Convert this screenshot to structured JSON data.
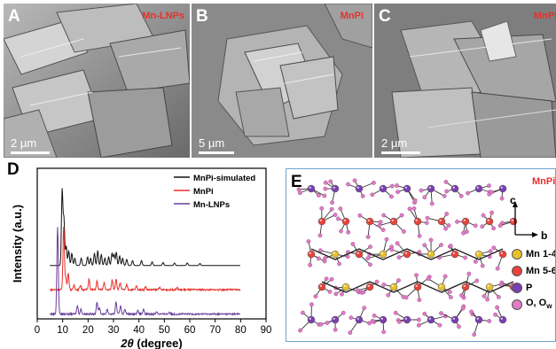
{
  "panels": {
    "A": {
      "letter": "A",
      "tag": "Mn-LNPs",
      "scale": "2 µm"
    },
    "B": {
      "letter": "B",
      "tag": "MnPi",
      "scale": "5 µm"
    },
    "C": {
      "letter": "C",
      "tag": "MnPi",
      "scale": "2 µm"
    },
    "D": {
      "letter": "D"
    },
    "E": {
      "letter": "E",
      "tag": "MnPi",
      "axis_c": "c",
      "axis_b": "b"
    }
  },
  "structure_legend": [
    {
      "label": "Mn 1-4",
      "color": "#e6c12b"
    },
    {
      "label": "Mn 5-6",
      "color": "#e8423a"
    },
    {
      "label": "P",
      "color": "#7a3fb0"
    },
    {
      "label": "O, O",
      "subscript": "w",
      "color": "#e07ac6"
    }
  ],
  "chart_data": {
    "type": "line",
    "xlabel_main": "2θ",
    "xlabel_unit": " (degree)",
    "ylabel": "Intensity (a.u.)",
    "xlim": [
      0,
      90
    ],
    "xticks": [
      0,
      10,
      20,
      30,
      40,
      50,
      60,
      70,
      80,
      90
    ],
    "series": [
      {
        "name": "MnPi-simulated",
        "color": "#111111",
        "offset": 2.0,
        "peaks": [
          [
            9.8,
            3.1
          ],
          [
            10.5,
            1.9
          ],
          [
            11.4,
            0.8
          ],
          [
            12.4,
            0.6
          ],
          [
            13.6,
            0.5
          ],
          [
            14.8,
            0.3
          ],
          [
            17.3,
            0.3
          ],
          [
            19.8,
            0.35
          ],
          [
            21.0,
            0.3
          ],
          [
            22.5,
            0.5
          ],
          [
            23.8,
            0.6
          ],
          [
            25.2,
            0.45
          ],
          [
            26.6,
            0.3
          ],
          [
            28.1,
            0.35
          ],
          [
            29.4,
            0.5
          ],
          [
            30.2,
            0.45
          ],
          [
            31.1,
            0.55
          ],
          [
            32.4,
            0.4
          ],
          [
            33.6,
            0.3
          ],
          [
            35.2,
            0.25
          ],
          [
            37.5,
            0.2
          ],
          [
            41.0,
            0.2
          ],
          [
            45.2,
            0.15
          ],
          [
            49.5,
            0.12
          ],
          [
            54.0,
            0.1
          ],
          [
            59.0,
            0.1
          ],
          [
            64.0,
            0.08
          ]
        ]
      },
      {
        "name": "MnPi",
        "color": "#e8302a",
        "offset": 1.0,
        "peaks": [
          [
            10.4,
            2.6
          ],
          [
            11.2,
            0.5
          ],
          [
            12.2,
            0.7
          ],
          [
            14.5,
            0.2
          ],
          [
            17.0,
            0.2
          ],
          [
            20.4,
            0.45
          ],
          [
            23.5,
            0.35
          ],
          [
            26.3,
            0.3
          ],
          [
            29.5,
            0.4
          ],
          [
            31.0,
            0.45
          ],
          [
            32.6,
            0.3
          ],
          [
            35.2,
            0.2
          ],
          [
            39.0,
            0.15
          ],
          [
            42.6,
            0.12
          ],
          [
            48.0,
            0.1
          ],
          [
            55.0,
            0.08
          ]
        ]
      },
      {
        "name": "Mn-LNPs",
        "color": "#6a3e99",
        "offset": 0.0,
        "peaks": [
          [
            8.0,
            3.6
          ],
          [
            15.8,
            0.35
          ],
          [
            17.2,
            0.2
          ],
          [
            23.5,
            0.5
          ],
          [
            24.5,
            0.25
          ],
          [
            27.5,
            0.2
          ],
          [
            31.0,
            0.5
          ],
          [
            32.8,
            0.35
          ],
          [
            34.5,
            0.2
          ],
          [
            39.5,
            0.15
          ],
          [
            41.8,
            0.18
          ],
          [
            47.0,
            0.1
          ],
          [
            52.0,
            0.08
          ]
        ]
      }
    ],
    "ylim": [
      -0.2,
      6.0
    ],
    "legend_position": "top-right"
  }
}
